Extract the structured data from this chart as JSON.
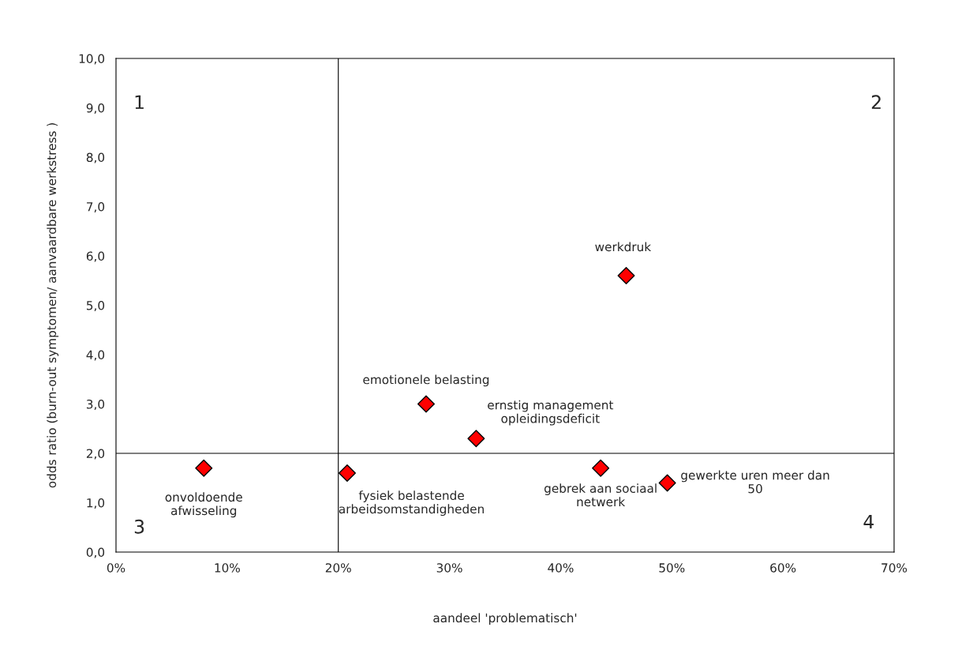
{
  "chart_data": {
    "type": "scatter",
    "xlabel": "aandeel 'problematisch'",
    "ylabel": "odds ratio (burn-out symptomen/ aanvaardbare werkstress )",
    "x": [
      7.9,
      20.8,
      27.9,
      32.4,
      45.9,
      43.6,
      49.6
    ],
    "series": [
      {
        "color": "#ff0000",
        "values": [
          1.7,
          1.6,
          3.0,
          2.3,
          5.6,
          1.7,
          1.4
        ]
      }
    ],
    "marker": "diamond",
    "xlim": [
      0,
      70
    ],
    "xticks": [
      {
        "value": 0,
        "label": "0%"
      },
      {
        "value": 10,
        "label": "10%"
      },
      {
        "value": 20,
        "label": "20%"
      },
      {
        "value": 30,
        "label": "30%"
      },
      {
        "value": 40,
        "label": "40%"
      },
      {
        "value": 50,
        "label": "50%"
      },
      {
        "value": 60,
        "label": "60%"
      },
      {
        "value": 70,
        "label": "70%"
      }
    ],
    "ylim": [
      0,
      10
    ],
    "yticks": [
      {
        "value": 0,
        "label": "0,0"
      },
      {
        "value": 1,
        "label": "1,0"
      },
      {
        "value": 2,
        "label": "2,0"
      },
      {
        "value": 3,
        "label": "3,0"
      },
      {
        "value": 4,
        "label": "4,0"
      },
      {
        "value": 5,
        "label": "5,0"
      },
      {
        "value": 6,
        "label": "6,0"
      },
      {
        "value": 7,
        "label": "7,0"
      },
      {
        "value": 8,
        "label": "8,0"
      },
      {
        "value": 9,
        "label": "9,0"
      },
      {
        "value": 10,
        "label": "10,0"
      }
    ],
    "ref_lines": [
      {
        "axis": "x",
        "value": 20,
        "color": "#000000"
      },
      {
        "axis": "y",
        "value": 2,
        "color": "#000000"
      }
    ],
    "grid": false,
    "annotations": [
      {
        "text": "onvoldoende\nafwisseling",
        "x": 7.9,
        "y": 1.7
      },
      {
        "text": "fysiek belastende\narbeidsomstandigheden",
        "x": 20.8,
        "y": 1.6
      },
      {
        "text": "emotionele belasting",
        "x": 27.9,
        "y": 3.0
      },
      {
        "text": "ernstig management\nopleidingsdeficit",
        "x": 32.4,
        "y": 2.3
      },
      {
        "text": "werkdruk",
        "x": 45.9,
        "y": 5.6
      },
      {
        "text": "gebrek aan sociaal\nnetwerk",
        "x": 43.6,
        "y": 1.7
      },
      {
        "text": "gewerkte uren meer dan\n50",
        "x": 49.6,
        "y": 1.4
      },
      "1",
      "2",
      "3",
      "4"
    ]
  }
}
